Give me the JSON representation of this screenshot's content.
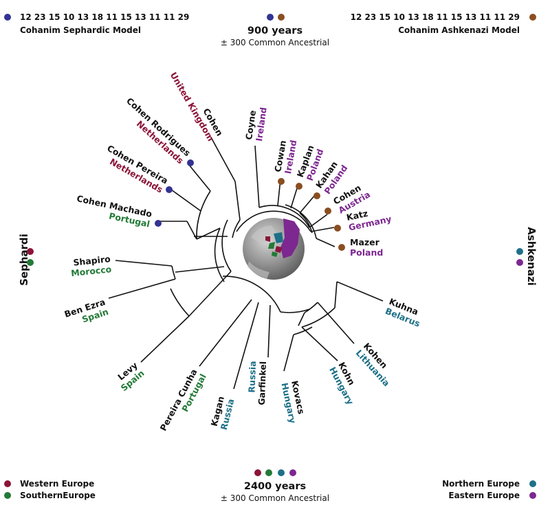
{
  "colors": {
    "western_europe": "#8b1538",
    "southern_europe": "#237a36",
    "northern_europe": "#1d7088",
    "eastern_europe": "#7d2790",
    "sephardic_model": "#333394",
    "ashkenazi_model": "#8a4e20",
    "black": "#111111"
  },
  "header": {
    "left_code": "12 23 15 10 13 18 11 15 13 11 11 29",
    "left_model": "Cohanim Sephardic Model",
    "center_title": "900 years",
    "center_sub": "± 300 Common Ancestrial",
    "right_code": "12 23 15 10 13 18 11 15 13 11 11 29",
    "right_model": "Cohanim Ashkenazi Model"
  },
  "side_labels": {
    "left": "Sephardi",
    "right": "Ashkenazi"
  },
  "footer": {
    "center_title": "2400 years",
    "center_sub": "± 300 Common Ancestrial",
    "legend_left": [
      "Western Europe",
      "SouthernEurope"
    ],
    "legend_right": [
      "Northern Europe",
      "Eastern Europe"
    ]
  },
  "leaves": [
    {
      "name": "Cohen",
      "country": "United Kingdom",
      "region": "western_europe"
    },
    {
      "name": "Cohen Rodrigues",
      "country": "Netherlands",
      "region": "western_europe"
    },
    {
      "name": "Cohen Pereira",
      "country": "Netherlands",
      "region": "western_europe"
    },
    {
      "name": "Cohen Machado",
      "country": "Portugal",
      "region": "southern_europe"
    },
    {
      "name": "Shapiro",
      "country": "Morocco",
      "region": "southern_europe"
    },
    {
      "name": "Ben Ezra",
      "country": "Spain",
      "region": "southern_europe"
    },
    {
      "name": "Levy",
      "country": "Spain",
      "region": "southern_europe"
    },
    {
      "name": "Pereira Cunha",
      "country": "Portugal",
      "region": "southern_europe"
    },
    {
      "name": "Kagan",
      "country": "Russia",
      "region": "northern_europe"
    },
    {
      "name": "Garfinkel",
      "country": "Russia",
      "region": "northern_europe"
    },
    {
      "name": "Kovacs",
      "country": "Hungary",
      "region": "northern_europe"
    },
    {
      "name": "Kohn",
      "country": "Hungary",
      "region": "northern_europe"
    },
    {
      "name": "Kohen",
      "country": "Lithuania",
      "region": "northern_europe"
    },
    {
      "name": "Kuhna",
      "country": "Belarus",
      "region": "northern_europe"
    },
    {
      "name": "Mazer",
      "country": "Poland",
      "region": "eastern_europe"
    },
    {
      "name": "Katz",
      "country": "Germany",
      "region": "eastern_europe"
    },
    {
      "name": "Cohen",
      "country": "Austria",
      "region": "eastern_europe"
    },
    {
      "name": "Kahan",
      "country": "Poland",
      "region": "eastern_europe"
    },
    {
      "name": "Kaplan",
      "country": "Poland",
      "region": "eastern_europe"
    },
    {
      "name": "Cowan",
      "country": "Ireland",
      "region": "eastern_europe"
    },
    {
      "name": "Coyne",
      "country": "Ireland",
      "region": "eastern_europe"
    }
  ]
}
